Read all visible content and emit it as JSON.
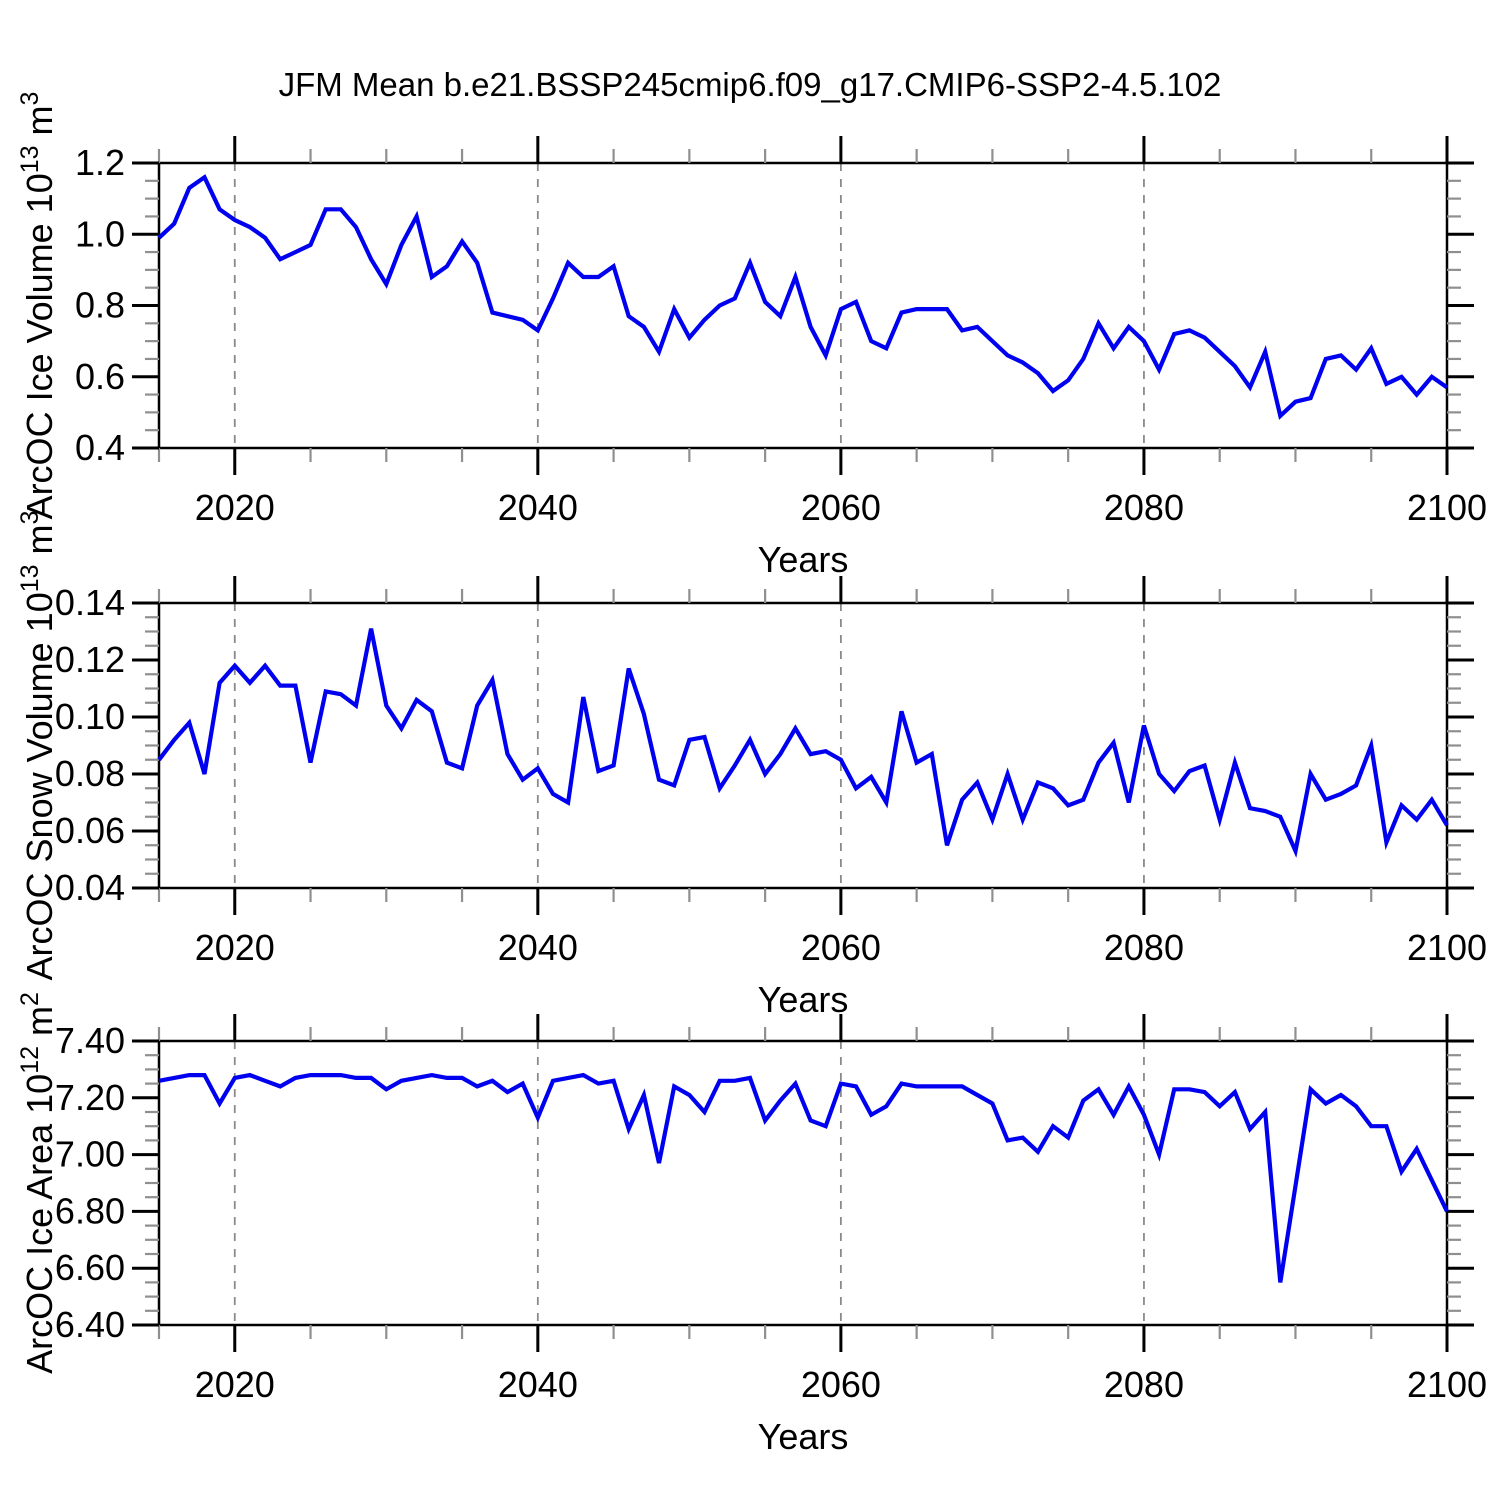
{
  "title": "JFM Mean b.e21.BSSP245cmip6.f09_g17.CMIP6-SSP2-4.5.102",
  "line_color": "#0000f0",
  "grid_color": "#8a8a8a",
  "axis_color": "#000000",
  "minor_tick_color": "#8f8f8f",
  "x_axis": {
    "label": "Years",
    "range": [
      2015,
      2100
    ],
    "major_ticks": [
      2020,
      2040,
      2060,
      2080,
      2100
    ],
    "major_tick_labels": [
      "2020",
      "2040",
      "2060",
      "2080",
      "2100"
    ],
    "minor_step": 5,
    "gridlines": [
      2020,
      2040,
      2060,
      2080
    ]
  },
  "chart_data": [
    {
      "type": "line",
      "name": "ice-volume",
      "ylabel": "ArcOC Ice Volume 10^13 m^3",
      "ylabel_parts": [
        {
          "t": "ArcOC Ice Volume 10",
          "sup": false
        },
        {
          "t": "13",
          "sup": true
        },
        {
          "t": " m",
          "sup": false
        },
        {
          "t": "3",
          "sup": true
        }
      ],
      "xlabel": "Years",
      "ylim": [
        0.4,
        1.2
      ],
      "ytick_step": 0.2,
      "yminor_step": 0.05,
      "ydecimals": 1,
      "ytick_labels": [
        "0.4",
        "0.6",
        "0.8",
        "1.0",
        "1.2"
      ],
      "x": [
        2015,
        2016,
        2017,
        2018,
        2019,
        2020,
        2021,
        2022,
        2023,
        2024,
        2025,
        2026,
        2027,
        2028,
        2029,
        2030,
        2031,
        2032,
        2033,
        2034,
        2035,
        2036,
        2037,
        2038,
        2039,
        2040,
        2041,
        2042,
        2043,
        2044,
        2045,
        2046,
        2047,
        2048,
        2049,
        2050,
        2051,
        2052,
        2053,
        2054,
        2055,
        2056,
        2057,
        2058,
        2059,
        2060,
        2061,
        2062,
        2063,
        2064,
        2065,
        2066,
        2067,
        2068,
        2069,
        2070,
        2071,
        2072,
        2073,
        2074,
        2075,
        2076,
        2077,
        2078,
        2079,
        2080,
        2081,
        2082,
        2083,
        2084,
        2085,
        2086,
        2087,
        2088,
        2089,
        2090,
        2091,
        2092,
        2093,
        2094,
        2095,
        2096,
        2097,
        2098,
        2099,
        2100
      ],
      "values": [
        0.99,
        1.03,
        1.13,
        1.16,
        1.07,
        1.04,
        1.02,
        0.99,
        0.93,
        0.95,
        0.97,
        1.07,
        1.07,
        1.02,
        0.93,
        0.86,
        0.97,
        1.05,
        0.88,
        0.91,
        0.98,
        0.92,
        0.78,
        0.77,
        0.76,
        0.73,
        0.82,
        0.92,
        0.88,
        0.88,
        0.91,
        0.77,
        0.74,
        0.67,
        0.79,
        0.71,
        0.76,
        0.8,
        0.82,
        0.92,
        0.81,
        0.77,
        0.88,
        0.74,
        0.66,
        0.79,
        0.81,
        0.7,
        0.68,
        0.78,
        0.79,
        0.79,
        0.79,
        0.73,
        0.74,
        0.7,
        0.66,
        0.64,
        0.61,
        0.56,
        0.59,
        0.65,
        0.75,
        0.68,
        0.74,
        0.7,
        0.62,
        0.72,
        0.73,
        0.71,
        0.67,
        0.63,
        0.57,
        0.67,
        0.49,
        0.53,
        0.54,
        0.65,
        0.66,
        0.62,
        0.68,
        0.58,
        0.6,
        0.55,
        0.6,
        0.57
      ]
    },
    {
      "type": "line",
      "name": "snow-volume",
      "ylabel": "ArcOC Snow Volume 10^13 m^3",
      "ylabel_parts": [
        {
          "t": "ArcOC Snow Volume 10",
          "sup": false
        },
        {
          "t": "13",
          "sup": true
        },
        {
          "t": " m",
          "sup": false
        },
        {
          "t": "3",
          "sup": true
        }
      ],
      "xlabel": "Years",
      "ylim": [
        0.04,
        0.14
      ],
      "ytick_step": 0.02,
      "yminor_step": 0.005,
      "ydecimals": 2,
      "ytick_labels": [
        "0.04",
        "0.06",
        "0.08",
        "0.10",
        "0.12",
        "0.14"
      ],
      "x": [
        2015,
        2016,
        2017,
        2018,
        2019,
        2020,
        2021,
        2022,
        2023,
        2024,
        2025,
        2026,
        2027,
        2028,
        2029,
        2030,
        2031,
        2032,
        2033,
        2034,
        2035,
        2036,
        2037,
        2038,
        2039,
        2040,
        2041,
        2042,
        2043,
        2044,
        2045,
        2046,
        2047,
        2048,
        2049,
        2050,
        2051,
        2052,
        2053,
        2054,
        2055,
        2056,
        2057,
        2058,
        2059,
        2060,
        2061,
        2062,
        2063,
        2064,
        2065,
        2066,
        2067,
        2068,
        2069,
        2070,
        2071,
        2072,
        2073,
        2074,
        2075,
        2076,
        2077,
        2078,
        2079,
        2080,
        2081,
        2082,
        2083,
        2084,
        2085,
        2086,
        2087,
        2088,
        2089,
        2090,
        2091,
        2092,
        2093,
        2094,
        2095,
        2096,
        2097,
        2098,
        2099,
        2100
      ],
      "values": [
        0.085,
        0.092,
        0.098,
        0.08,
        0.112,
        0.118,
        0.112,
        0.118,
        0.111,
        0.111,
        0.084,
        0.109,
        0.108,
        0.104,
        0.131,
        0.104,
        0.096,
        0.106,
        0.102,
        0.084,
        0.082,
        0.104,
        0.113,
        0.087,
        0.078,
        0.082,
        0.073,
        0.07,
        0.107,
        0.081,
        0.083,
        0.117,
        0.101,
        0.078,
        0.076,
        0.092,
        0.093,
        0.075,
        0.083,
        0.092,
        0.08,
        0.087,
        0.096,
        0.087,
        0.088,
        0.085,
        0.075,
        0.079,
        0.07,
        0.102,
        0.084,
        0.087,
        0.055,
        0.071,
        0.077,
        0.064,
        0.08,
        0.064,
        0.077,
        0.075,
        0.069,
        0.071,
        0.084,
        0.091,
        0.07,
        0.097,
        0.08,
        0.074,
        0.081,
        0.083,
        0.064,
        0.084,
        0.068,
        0.067,
        0.065,
        0.053,
        0.08,
        0.071,
        0.073,
        0.076,
        0.09,
        0.056,
        0.069,
        0.064,
        0.071,
        0.062
      ]
    },
    {
      "type": "line",
      "name": "ice-area",
      "ylabel": "ArcOC Ice Area 10^12 m^2",
      "ylabel_parts": [
        {
          "t": "ArcOC Ice Area 10",
          "sup": false
        },
        {
          "t": "12",
          "sup": true
        },
        {
          "t": " m",
          "sup": false
        },
        {
          "t": "2",
          "sup": true
        }
      ],
      "xlabel": "Years",
      "ylim": [
        6.4,
        7.4
      ],
      "ytick_step": 0.2,
      "yminor_step": 0.05,
      "ydecimals": 2,
      "ytick_labels": [
        "6.40",
        "6.60",
        "6.80",
        "7.00",
        "7.20",
        "7.40"
      ],
      "x": [
        2015,
        2016,
        2017,
        2018,
        2019,
        2020,
        2021,
        2022,
        2023,
        2024,
        2025,
        2026,
        2027,
        2028,
        2029,
        2030,
        2031,
        2032,
        2033,
        2034,
        2035,
        2036,
        2037,
        2038,
        2039,
        2040,
        2041,
        2042,
        2043,
        2044,
        2045,
        2046,
        2047,
        2048,
        2049,
        2050,
        2051,
        2052,
        2053,
        2054,
        2055,
        2056,
        2057,
        2058,
        2059,
        2060,
        2061,
        2062,
        2063,
        2064,
        2065,
        2066,
        2067,
        2068,
        2069,
        2070,
        2071,
        2072,
        2073,
        2074,
        2075,
        2076,
        2077,
        2078,
        2079,
        2080,
        2081,
        2082,
        2083,
        2084,
        2085,
        2086,
        2087,
        2088,
        2089,
        2090,
        2091,
        2092,
        2093,
        2094,
        2095,
        2096,
        2097,
        2098,
        2099,
        2100
      ],
      "values": [
        7.26,
        7.27,
        7.28,
        7.28,
        7.18,
        7.27,
        7.28,
        7.26,
        7.24,
        7.27,
        7.28,
        7.28,
        7.28,
        7.27,
        7.27,
        7.23,
        7.26,
        7.27,
        7.28,
        7.27,
        7.27,
        7.24,
        7.26,
        7.22,
        7.25,
        7.13,
        7.26,
        7.27,
        7.28,
        7.25,
        7.26,
        7.09,
        7.21,
        6.97,
        7.24,
        7.21,
        7.15,
        7.26,
        7.26,
        7.27,
        7.12,
        7.19,
        7.25,
        7.12,
        7.1,
        7.25,
        7.24,
        7.14,
        7.17,
        7.25,
        7.24,
        7.24,
        7.24,
        7.24,
        7.21,
        7.18,
        7.05,
        7.06,
        7.01,
        7.1,
        7.06,
        7.19,
        7.23,
        7.14,
        7.24,
        7.14,
        7.0,
        7.23,
        7.23,
        7.22,
        7.17,
        7.22,
        7.09,
        7.15,
        6.55,
        6.89,
        7.23,
        7.18,
        7.21,
        7.17,
        7.1,
        7.1,
        6.94,
        7.02,
        6.91,
        6.8
      ]
    }
  ]
}
